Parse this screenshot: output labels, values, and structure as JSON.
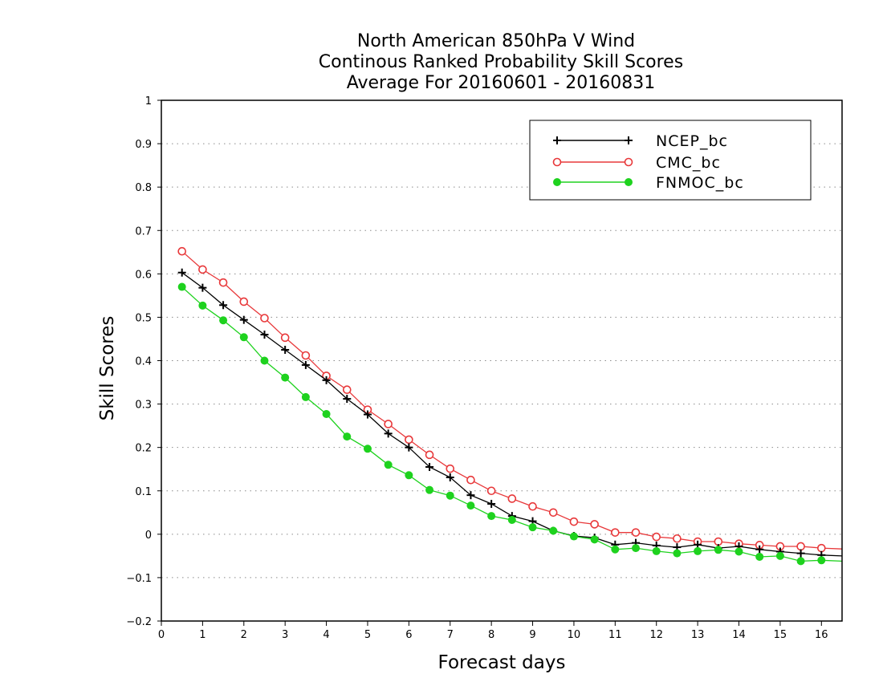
{
  "chart_data": {
    "type": "line",
    "title_lines": [
      "North American 850hPa V Wind",
      "Continous Ranked Probability Skill Scores",
      "Average For 20160601 - 20160831"
    ],
    "xlabel": "Forecast days",
    "ylabel": "Skill Scores",
    "xlim": [
      0,
      16.5
    ],
    "ylim": [
      -0.2,
      1
    ],
    "x_ticks": [
      "0",
      "1",
      "2",
      "3",
      "4",
      "5",
      "6",
      "7",
      "8",
      "9",
      "10",
      "11",
      "12",
      "13",
      "14",
      "15",
      "16"
    ],
    "y_ticks": [
      "−0.2",
      "−0.1",
      "0",
      "0.1",
      "0.2",
      "0.3",
      "0.4",
      "0.5",
      "0.6",
      "0.7",
      "0.8",
      "0.9",
      "1"
    ],
    "grid": "horizontal dotted",
    "legend_position": "top-right",
    "x": [
      0.5,
      1,
      1.5,
      2,
      2.5,
      3,
      3.5,
      4,
      4.5,
      5,
      5.5,
      6,
      6.5,
      7,
      7.5,
      8,
      8.5,
      9,
      9.5,
      10,
      10.5,
      11,
      11.5,
      12,
      12.5,
      13,
      13.5,
      14,
      14.5,
      15,
      15.5,
      16,
      16.5
    ],
    "series": [
      {
        "name": "NCEP_bc",
        "color": "#000000",
        "marker": "plus",
        "values": [
          0.603,
          0.568,
          0.528,
          0.494,
          0.46,
          0.425,
          0.39,
          0.355,
          0.312,
          0.276,
          0.232,
          0.2,
          0.155,
          0.131,
          0.09,
          0.07,
          0.042,
          0.03,
          0.008,
          -0.004,
          -0.008,
          -0.024,
          -0.02,
          -0.026,
          -0.03,
          -0.024,
          -0.032,
          -0.028,
          -0.035,
          -0.04,
          -0.044,
          -0.048,
          -0.05
        ]
      },
      {
        "name": "CMC_bc",
        "color": "#e8383a",
        "marker": "open-circle",
        "values": [
          0.652,
          0.61,
          0.58,
          0.536,
          0.498,
          0.453,
          0.412,
          0.365,
          0.333,
          0.287,
          0.254,
          0.218,
          0.183,
          0.151,
          0.125,
          0.1,
          0.082,
          0.064,
          0.05,
          0.029,
          0.023,
          0.004,
          0.004,
          -0.006,
          -0.01,
          -0.017,
          -0.017,
          -0.022,
          -0.025,
          -0.028,
          -0.028,
          -0.032,
          -0.034
        ]
      },
      {
        "name": "FNMOC_bc",
        "color": "#1ed21e",
        "marker": "filled-circle",
        "values": [
          0.57,
          0.527,
          0.493,
          0.454,
          0.4,
          0.361,
          0.316,
          0.277,
          0.225,
          0.197,
          0.16,
          0.136,
          0.102,
          0.089,
          0.066,
          0.042,
          0.033,
          0.016,
          0.008,
          -0.005,
          -0.012,
          -0.035,
          -0.032,
          -0.039,
          -0.044,
          -0.039,
          -0.036,
          -0.04,
          -0.052,
          -0.05,
          -0.062,
          -0.06,
          -0.062
        ]
      }
    ]
  }
}
